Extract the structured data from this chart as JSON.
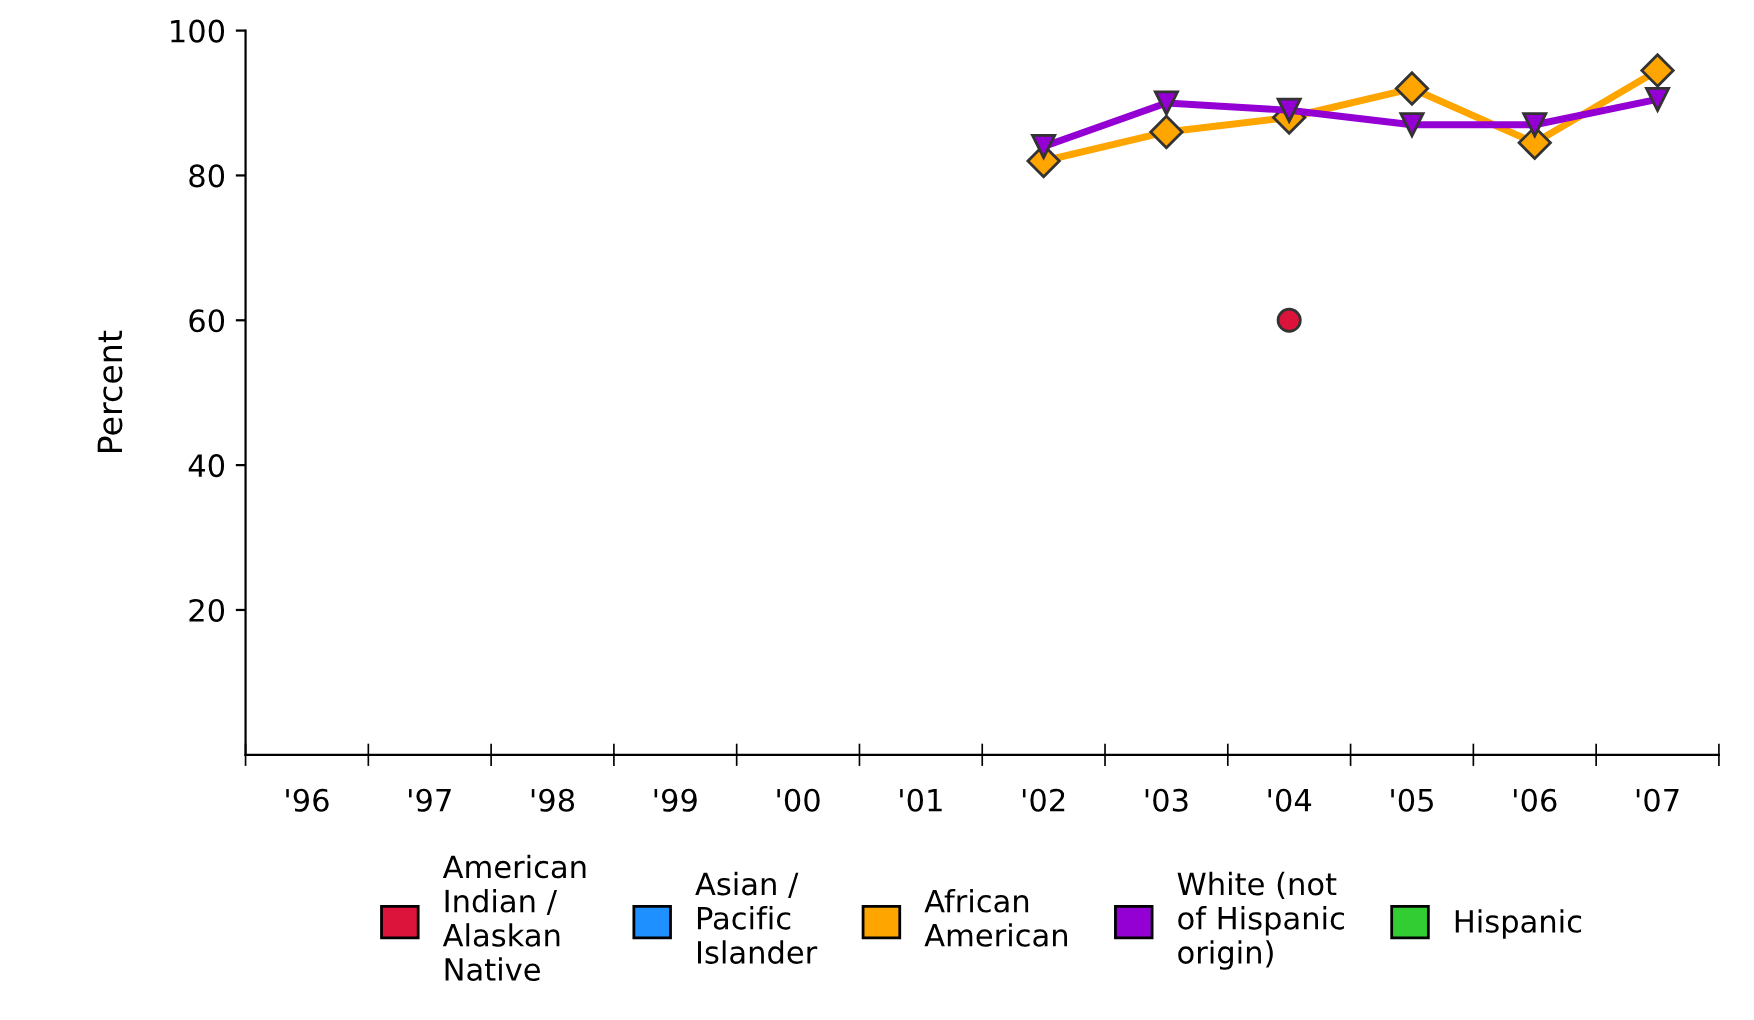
{
  "chart_data": {
    "type": "line",
    "ylabel": "Percent",
    "categories": [
      "'96",
      "'97",
      "'98",
      "'99",
      "'00",
      "'01",
      "'02",
      "'03",
      "'04",
      "'05",
      "'06",
      "'07"
    ],
    "series": [
      {
        "name": "American Indian / Alaskan Native",
        "color": "#dc143c",
        "marker": "circle",
        "values": [
          null,
          null,
          null,
          null,
          null,
          null,
          null,
          null,
          60,
          null,
          null,
          null
        ]
      },
      {
        "name": "Asian / Pacific Islander",
        "color": "#1e90ff",
        "marker": "square",
        "values": [
          null,
          null,
          null,
          null,
          null,
          null,
          null,
          null,
          null,
          null,
          null,
          null
        ]
      },
      {
        "name": "African American",
        "color": "#ffa500",
        "marker": "diamond",
        "values": [
          null,
          null,
          null,
          null,
          null,
          null,
          82,
          86,
          88,
          92,
          84.5,
          94.5
        ]
      },
      {
        "name": "White (not of Hispanic origin)",
        "color": "#9400d3",
        "marker": "triangle",
        "values": [
          null,
          null,
          null,
          null,
          null,
          null,
          84,
          90,
          89,
          87,
          87,
          90.5
        ]
      },
      {
        "name": "Hispanic",
        "color": "#32cd32",
        "marker": "square",
        "values": [
          null,
          null,
          null,
          null,
          null,
          null,
          null,
          null,
          null,
          null,
          null,
          null
        ]
      }
    ],
    "ylim": [
      0,
      100
    ],
    "yticks": [
      20,
      40,
      60,
      80,
      100
    ],
    "grid": false,
    "legend": "bottom"
  }
}
